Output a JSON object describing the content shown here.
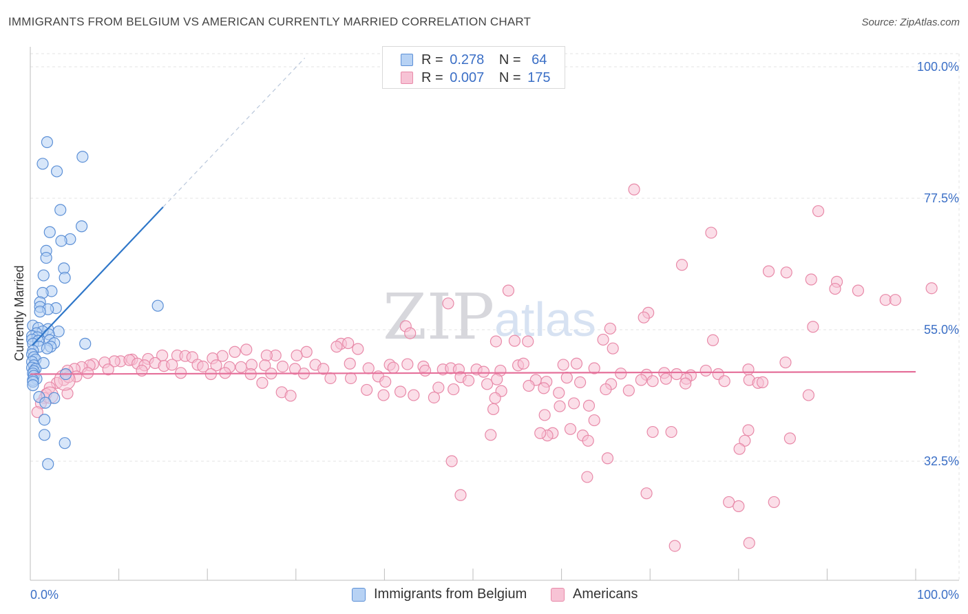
{
  "title": "IMMIGRANTS FROM BELGIUM VS AMERICAN CURRENTLY MARRIED CORRELATION CHART",
  "source": "Source: ZipAtlas.com",
  "watermark": {
    "zip": "ZIP",
    "atlas": "atlas"
  },
  "colors": {
    "blue_fill": "#b7d2f4",
    "blue_stroke": "#5b8fd6",
    "blue_line": "#2f77c9",
    "pink_fill": "#f7c3d5",
    "pink_stroke": "#e889a8",
    "pink_line": "#e5709a",
    "accent_text": "#3b6fc6",
    "grid": "#e3e3e3"
  },
  "stats": [
    {
      "r_label": "R =",
      "r_value": "0.278",
      "n_label": "N =",
      "n_value": "64",
      "color": "blue"
    },
    {
      "r_label": "R =",
      "r_value": "0.007",
      "n_label": "N =",
      "n_value": "175",
      "color": "pink"
    }
  ],
  "legend": [
    {
      "label": "Immigrants from Belgium",
      "color": "blue"
    },
    {
      "label": "Americans",
      "color": "pink"
    }
  ],
  "chart_data": {
    "type": "scatter",
    "title": "IMMIGRANTS FROM BELGIUM VS AMERICAN CURRENTLY MARRIED CORRELATION CHART",
    "xlabel": "",
    "ylabel": "Currently Married",
    "xlim": [
      0,
      100
    ],
    "ylim": [
      10,
      102
    ],
    "x_tick_labels": {
      "left": "0.0%",
      "right": "100.0%"
    },
    "y_ticks": [
      {
        "value": 100,
        "label": "100.0%"
      },
      {
        "value": 77.5,
        "label": "77.5%"
      },
      {
        "value": 55,
        "label": "55.0%"
      },
      {
        "value": 32.5,
        "label": "32.5%"
      }
    ],
    "x_minor_ticks": [
      10,
      20,
      30,
      40,
      50,
      60,
      70,
      80,
      90,
      100
    ],
    "grid": true,
    "legend_position": "bottom-center",
    "series": [
      {
        "name": "Immigrants from Belgium",
        "color": "blue",
        "points": [
          [
            1.9,
            87.1
          ],
          [
            5.9,
            84.6
          ],
          [
            1.4,
            83.4
          ],
          [
            3.0,
            82.1
          ],
          [
            3.4,
            75.5
          ],
          [
            5.8,
            72.7
          ],
          [
            2.2,
            71.7
          ],
          [
            4.5,
            70.5
          ],
          [
            3.5,
            70.2
          ],
          [
            1.8,
            68.5
          ],
          [
            1.8,
            67.3
          ],
          [
            3.8,
            65.5
          ],
          [
            1.5,
            64.3
          ],
          [
            3.9,
            63.9
          ],
          [
            2.4,
            61.6
          ],
          [
            1.4,
            61.3
          ],
          [
            1.1,
            59.7
          ],
          [
            1.1,
            58.9
          ],
          [
            2.9,
            58.7
          ],
          [
            2.0,
            58.5
          ],
          [
            1.1,
            58.1
          ],
          [
            14.4,
            59.1
          ],
          [
            0.3,
            55.7
          ],
          [
            0.9,
            55.3
          ],
          [
            2.0,
            55.1
          ],
          [
            3.2,
            54.7
          ],
          [
            1.4,
            54.7
          ],
          [
            0.7,
            54.4
          ],
          [
            2.1,
            54.2
          ],
          [
            0.2,
            53.9
          ],
          [
            0.8,
            53.7
          ],
          [
            0.2,
            53.3
          ],
          [
            2.2,
            53.2
          ],
          [
            0.9,
            53.1
          ],
          [
            2.7,
            52.7
          ],
          [
            6.2,
            52.6
          ],
          [
            0.3,
            52.6
          ],
          [
            1.0,
            52.1
          ],
          [
            2.3,
            52.1
          ],
          [
            1.9,
            51.8
          ],
          [
            0.3,
            51.4
          ],
          [
            0.2,
            50.8
          ],
          [
            0.4,
            50.3
          ],
          [
            0.6,
            49.9
          ],
          [
            0.2,
            49.5
          ],
          [
            1.5,
            49.3
          ],
          [
            0.4,
            48.9
          ],
          [
            0.2,
            48.5
          ],
          [
            0.6,
            48.3
          ],
          [
            0.4,
            47.9
          ],
          [
            0.3,
            47.5
          ],
          [
            4.0,
            47.4
          ],
          [
            0.4,
            47.1
          ],
          [
            0.7,
            46.6
          ],
          [
            0.3,
            46.4
          ],
          [
            0.3,
            46.1
          ],
          [
            0.3,
            45.5
          ],
          [
            1.0,
            43.5
          ],
          [
            2.7,
            43.3
          ],
          [
            1.7,
            42.5
          ],
          [
            1.6,
            39.6
          ],
          [
            1.6,
            37.0
          ],
          [
            3.9,
            35.6
          ],
          [
            2.0,
            32.0
          ]
        ]
      },
      {
        "name": "Americans",
        "color": "pink",
        "points": [
          [
            68.2,
            79.0
          ],
          [
            89.0,
            75.3
          ],
          [
            76.9,
            71.6
          ],
          [
            73.6,
            66.1
          ],
          [
            83.4,
            65.0
          ],
          [
            85.4,
            64.8
          ],
          [
            88.2,
            63.6
          ],
          [
            91.1,
            63.2
          ],
          [
            93.5,
            61.7
          ],
          [
            90.9,
            62.0
          ],
          [
            101.8,
            62.1
          ],
          [
            96.6,
            60.1
          ],
          [
            97.7,
            60.1
          ],
          [
            54.0,
            61.7
          ],
          [
            47.2,
            59.5
          ],
          [
            69.8,
            57.9
          ],
          [
            69.3,
            57.1
          ],
          [
            42.4,
            55.6
          ],
          [
            42.9,
            54.4
          ],
          [
            65.5,
            55.2
          ],
          [
            88.4,
            55.5
          ],
          [
            64.7,
            53.3
          ],
          [
            77.1,
            53.2
          ],
          [
            54.7,
            53.1
          ],
          [
            56.2,
            53.0
          ],
          [
            52.6,
            53.0
          ],
          [
            65.8,
            51.8
          ],
          [
            35.1,
            52.6
          ],
          [
            35.9,
            52.7
          ],
          [
            37.0,
            51.7
          ],
          [
            34.6,
            52.1
          ],
          [
            24.4,
            51.6
          ],
          [
            23.1,
            51.2
          ],
          [
            31.2,
            51.2
          ],
          [
            30.1,
            50.6
          ],
          [
            27.7,
            50.6
          ],
          [
            26.7,
            50.6
          ],
          [
            21.7,
            50.5
          ],
          [
            14.9,
            50.6
          ],
          [
            16.6,
            50.6
          ],
          [
            17.5,
            50.5
          ],
          [
            18.3,
            50.3
          ],
          [
            20.6,
            50.1
          ],
          [
            13.3,
            50.0
          ],
          [
            11.5,
            49.9
          ],
          [
            10.2,
            49.6
          ],
          [
            9.5,
            49.6
          ],
          [
            8.4,
            49.4
          ],
          [
            7.1,
            49.1
          ],
          [
            6.7,
            48.9
          ],
          [
            5.8,
            48.6
          ],
          [
            5.0,
            48.3
          ],
          [
            4.2,
            48.0
          ],
          [
            11.2,
            49.8
          ],
          [
            12.1,
            49.2
          ],
          [
            12.9,
            48.9
          ],
          [
            14.1,
            49.3
          ],
          [
            15.1,
            48.8
          ],
          [
            16.0,
            49.0
          ],
          [
            18.9,
            49.0
          ],
          [
            19.5,
            48.7
          ],
          [
            21.0,
            48.9
          ],
          [
            22.5,
            48.6
          ],
          [
            23.8,
            48.6
          ],
          [
            25.0,
            49.0
          ],
          [
            26.5,
            48.9
          ],
          [
            28.5,
            48.7
          ],
          [
            29.9,
            48.3
          ],
          [
            32.2,
            49.0
          ],
          [
            33.1,
            48.3
          ],
          [
            36.1,
            49.2
          ],
          [
            38.2,
            48.4
          ],
          [
            40.6,
            49.0
          ],
          [
            41.0,
            48.5
          ],
          [
            42.6,
            49.1
          ],
          [
            44.4,
            48.7
          ],
          [
            44.6,
            48.0
          ],
          [
            46.6,
            48.2
          ],
          [
            47.5,
            48.4
          ],
          [
            48.4,
            48.2
          ],
          [
            50.4,
            48.2
          ],
          [
            51.2,
            47.8
          ],
          [
            53.1,
            48.0
          ],
          [
            55.1,
            48.9
          ],
          [
            55.7,
            49.2
          ],
          [
            60.2,
            49.0
          ],
          [
            61.7,
            49.2
          ],
          [
            63.7,
            48.4
          ],
          [
            66.7,
            47.5
          ],
          [
            69.6,
            47.3
          ],
          [
            71.6,
            47.6
          ],
          [
            73.0,
            47.4
          ],
          [
            74.6,
            47.2
          ],
          [
            77.7,
            47.4
          ],
          [
            81.1,
            48.2
          ],
          [
            85.3,
            49.4
          ],
          [
            76.3,
            48.0
          ],
          [
            24.9,
            47.4
          ],
          [
            22.0,
            47.6
          ],
          [
            20.4,
            47.4
          ],
          [
            17.0,
            47.6
          ],
          [
            12.6,
            48.0
          ],
          [
            8.8,
            48.2
          ],
          [
            6.5,
            47.6
          ],
          [
            5.2,
            47.0
          ],
          [
            3.8,
            46.4
          ],
          [
            3.0,
            45.9
          ],
          [
            2.2,
            45.1
          ],
          [
            1.8,
            44.0
          ],
          [
            1.6,
            43.3
          ],
          [
            1.2,
            42.4
          ],
          [
            0.8,
            40.9
          ],
          [
            4.2,
            44.1
          ],
          [
            4.3,
            46.9
          ],
          [
            27.2,
            47.5
          ],
          [
            30.9,
            47.5
          ],
          [
            26.2,
            45.9
          ],
          [
            33.9,
            46.7
          ],
          [
            36.2,
            46.7
          ],
          [
            39.3,
            47.0
          ],
          [
            40.1,
            46.1
          ],
          [
            48.6,
            46.9
          ],
          [
            49.5,
            46.3
          ],
          [
            51.6,
            45.7
          ],
          [
            52.7,
            46.5
          ],
          [
            57.1,
            46.4
          ],
          [
            56.3,
            45.4
          ],
          [
            58.3,
            46.1
          ],
          [
            60.6,
            46.8
          ],
          [
            62.1,
            46.0
          ],
          [
            65.6,
            45.7
          ],
          [
            69.0,
            46.4
          ],
          [
            70.3,
            46.2
          ],
          [
            71.8,
            46.6
          ],
          [
            74.1,
            46.6
          ],
          [
            78.4,
            46.2
          ],
          [
            81.2,
            46.4
          ],
          [
            82.2,
            45.9
          ],
          [
            82.7,
            46.0
          ],
          [
            74.0,
            45.8
          ],
          [
            28.4,
            44.3
          ],
          [
            29.4,
            43.7
          ],
          [
            38.0,
            44.7
          ],
          [
            39.9,
            43.8
          ],
          [
            41.8,
            44.4
          ],
          [
            43.3,
            43.8
          ],
          [
            45.6,
            43.4
          ],
          [
            46.1,
            45.1
          ],
          [
            47.8,
            44.8
          ],
          [
            53.2,
            44.5
          ],
          [
            52.5,
            43.3
          ],
          [
            58.0,
            45.0
          ],
          [
            59.7,
            44.2
          ],
          [
            65.0,
            44.8
          ],
          [
            67.6,
            44.6
          ],
          [
            61.4,
            42.4
          ],
          [
            63.1,
            42.0
          ],
          [
            59.8,
            41.9
          ],
          [
            52.3,
            41.4
          ],
          [
            58.1,
            40.4
          ],
          [
            61.0,
            38.0
          ],
          [
            59.0,
            37.3
          ],
          [
            62.4,
            36.9
          ],
          [
            63.0,
            36.0
          ],
          [
            58.4,
            36.9
          ],
          [
            57.6,
            37.3
          ],
          [
            63.7,
            39.5
          ],
          [
            70.3,
            37.5
          ],
          [
            72.4,
            37.5
          ],
          [
            81.1,
            37.8
          ],
          [
            85.8,
            36.4
          ],
          [
            80.7,
            36.0
          ],
          [
            80.1,
            34.6
          ],
          [
            52.0,
            37.0
          ],
          [
            47.6,
            32.5
          ],
          [
            62.9,
            29.8
          ],
          [
            65.2,
            33.0
          ],
          [
            48.6,
            26.7
          ],
          [
            69.6,
            27.0
          ],
          [
            78.9,
            25.5
          ],
          [
            80.0,
            24.8
          ],
          [
            84.0,
            25.5
          ],
          [
            72.8,
            18.0
          ],
          [
            81.2,
            18.5
          ],
          [
            87.9,
            43.8
          ]
        ]
      }
    ],
    "trend_lines": [
      {
        "series": "Immigrants from Belgium",
        "solid_from": [
          0.2,
          52.3
        ],
        "solid_to": [
          15.0,
          76.0
        ],
        "dashed_to": [
          31.0,
          101.5
        ]
      },
      {
        "series": "Americans",
        "from": [
          0.0,
          47.4
        ],
        "to": [
          100.0,
          47.8
        ]
      }
    ]
  }
}
